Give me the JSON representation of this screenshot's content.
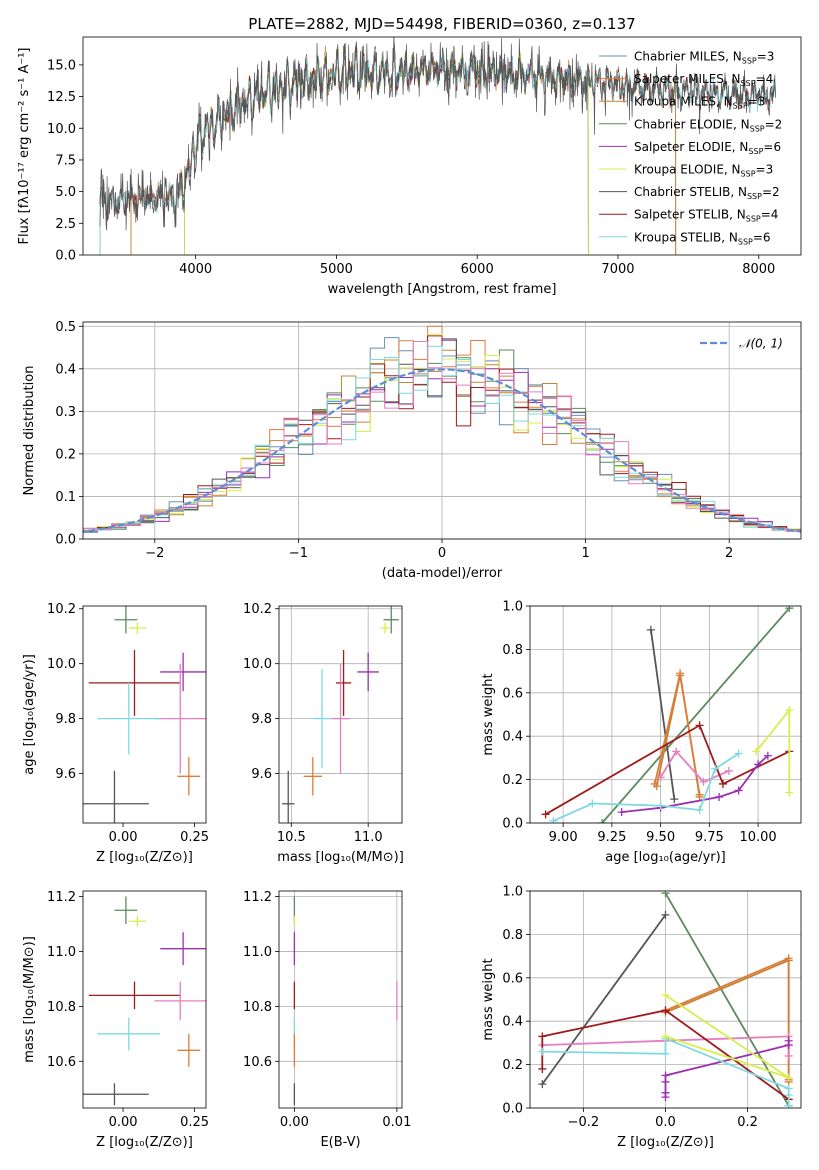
{
  "colors": {
    "Chabrier MILES": "#6a8fb8",
    "Salpeter MILES": "#e07b3c",
    "Kroupa MILES": "#c28437",
    "Chabrier ELODIE": "#5b8a5f",
    "Salpeter ELODIE": "#9b30b0",
    "Kroupa ELODIE": "#d8ee4a",
    "Chabrier STELIB": "#555555",
    "Salpeter STELIB": "#a11a1a",
    "Kroupa STELIB": "#7fd9e0",
    "pink": "#e67fbf",
    "gauss": "#5b8fd6",
    "grid": "#b0b0b0"
  },
  "chart_data": [
    {
      "id": "spectrum",
      "type": "line",
      "title": "PLATE=2882, MJD=54498, FIBERID=0360, z=0.137",
      "xlabel": "wavelength [Angstrom, rest frame]",
      "ylabel": "Flux [fλ10⁻¹⁷ erg cm⁻² s⁻¹ A⁻¹]",
      "xlim": [
        3200,
        8300
      ],
      "ylim": [
        0,
        17.2
      ],
      "xticks": [
        4000,
        5000,
        6000,
        7000,
        8000
      ],
      "yticks": [
        0.0,
        2.5,
        5.0,
        7.5,
        10.0,
        12.5,
        15.0
      ],
      "legend_position": "top-right",
      "legend": [
        {
          "text": "Chabrier MILES, N",
          "sub": "SSP",
          "n": "=3",
          "series": "Chabrier MILES"
        },
        {
          "text": "Salpeter MILES, N",
          "sub": "SSP",
          "n": "=4",
          "series": "Salpeter MILES"
        },
        {
          "text": "Kroupa MILES, N",
          "sub": "SSP",
          "n": "=3",
          "series": "Kroupa MILES"
        },
        {
          "text": "Chabrier ELODIE, N",
          "sub": "SSP",
          "n": "=2",
          "series": "Chabrier ELODIE"
        },
        {
          "text": "Salpeter ELODIE, N",
          "sub": "SSP",
          "n": "=6",
          "series": "Salpeter ELODIE"
        },
        {
          "text": "Kroupa ELODIE, N",
          "sub": "SSP",
          "n": "=3",
          "series": "Kroupa ELODIE"
        },
        {
          "text": "Chabrier STELIB, N",
          "sub": "SSP",
          "n": "=2",
          "series": "Chabrier STELIB"
        },
        {
          "text": "Salpeter STELIB, N",
          "sub": "SSP",
          "n": "=4",
          "series": "Salpeter STELIB"
        },
        {
          "text": "Kroupa STELIB, N",
          "sub": "SSP",
          "n": "=6",
          "series": "Kroupa STELIB"
        }
      ],
      "continuum": [
        [
          3350,
          4.2
        ],
        [
          3500,
          4.4
        ],
        [
          3700,
          4.6
        ],
        [
          3850,
          4.4
        ],
        [
          3950,
          6.5
        ],
        [
          4000,
          8.8
        ],
        [
          4100,
          10.0
        ],
        [
          4300,
          11.8
        ],
        [
          4500,
          12.8
        ],
        [
          4700,
          13.5
        ],
        [
          4900,
          14.0
        ],
        [
          5100,
          14.6
        ],
        [
          5300,
          14.3
        ],
        [
          5500,
          14.5
        ],
        [
          5800,
          14.7
        ],
        [
          6000,
          14.5
        ],
        [
          6300,
          14.3
        ],
        [
          6600,
          13.9
        ],
        [
          6900,
          13.5
        ],
        [
          7200,
          13.2
        ],
        [
          7500,
          12.9
        ],
        [
          7800,
          12.6
        ],
        [
          8100,
          12.6
        ]
      ],
      "data_range": [
        3320,
        8120
      ],
      "model_spans": {
        "Chabrier MILES": [
          3540,
          7410
        ],
        "Salpeter MILES": [
          3540,
          7410
        ],
        "Kroupa MILES": [
          3540,
          7410
        ],
        "Chabrier ELODIE": [
          3920,
          6790
        ],
        "Salpeter ELODIE": [
          3920,
          6790
        ],
        "Kroupa ELODIE": [
          3920,
          6790
        ],
        "Chabrier STELIB": [
          3320,
          8120
        ],
        "Salpeter STELIB": [
          3320,
          8120
        ],
        "Kroupa STELIB": [
          3320,
          8120
        ]
      }
    },
    {
      "id": "residuals",
      "type": "histogram",
      "xlabel": "(data-model)/error",
      "ylabel": "Normed distribution",
      "xlim": [
        -2.5,
        2.5
      ],
      "ylim": [
        0,
        0.51
      ],
      "xticks": [
        -2,
        -1,
        0,
        1,
        2
      ],
      "yticks": [
        0.0,
        0.1,
        0.2,
        0.3,
        0.4,
        0.5
      ],
      "grid": true,
      "legend_position": "top-right",
      "legend": [
        "𝒩(0, 1)"
      ],
      "bin_width": 0.1,
      "reference_curve": "gaussian N(0,1)"
    },
    {
      "id": "age_vs_Z",
      "type": "errorbar",
      "xlabel": "Z [log₁₀(Z/Z⊙)]",
      "ylabel": "age  [log₁₀(age/yr)]",
      "xlim": [
        -0.14,
        0.29
      ],
      "ylim": [
        9.42,
        10.21
      ],
      "xticks": [
        0.0,
        0.25
      ],
      "yticks": [
        9.6,
        9.8,
        10.0,
        10.2
      ],
      "points": [
        {
          "series": "Chabrier ELODIE",
          "x": 0.01,
          "xerr": 0.04,
          "y": 10.16,
          "yerr": 0.05
        },
        {
          "series": "Kroupa ELODIE",
          "x": 0.05,
          "xerr": 0.03,
          "y": 10.13,
          "yerr": 0.02
        },
        {
          "series": "Salpeter ELODIE",
          "x": 0.21,
          "xerr": 0.08,
          "y": 9.97,
          "yerr": 0.07
        },
        {
          "series": "Salpeter STELIB",
          "x": 0.04,
          "xerr": 0.16,
          "y": 9.93,
          "yerr": 0.12
        },
        {
          "series": "pink",
          "x": 0.2,
          "xerr": 0.09,
          "y": 9.8,
          "yerr": 0.2
        },
        {
          "series": "Kroupa STELIB",
          "x": 0.02,
          "xerr": 0.11,
          "y": 9.8,
          "yerr": 0.13
        },
        {
          "series": "Salpeter MILES",
          "x": 0.23,
          "xerr": 0.04,
          "y": 9.59,
          "yerr": 0.07
        },
        {
          "series": "Chabrier STELIB",
          "x": -0.03,
          "xerr": 0.12,
          "y": 9.49,
          "yerr": 0.12
        }
      ]
    },
    {
      "id": "age_vs_mass",
      "type": "errorbar",
      "xlabel": "mass [log₁₀(M/M⊙)]",
      "ylabel": "",
      "xlim": [
        10.42,
        11.22
      ],
      "ylim": [
        9.42,
        10.21
      ],
      "xticks": [
        10.5,
        11.0
      ],
      "yticks": [
        9.6,
        9.8,
        10.0,
        10.2
      ],
      "grid": true,
      "points": [
        {
          "series": "Chabrier ELODIE",
          "x": 11.15,
          "xerr": 0.05,
          "y": 10.16,
          "yerr": 0.05
        },
        {
          "series": "Kroupa ELODIE",
          "x": 11.11,
          "xerr": 0.03,
          "y": 10.13,
          "yerr": 0.02
        },
        {
          "series": "Salpeter ELODIE",
          "x": 11.0,
          "xerr": 0.07,
          "y": 9.97,
          "yerr": 0.07
        },
        {
          "series": "Salpeter STELIB",
          "x": 10.84,
          "xerr": 0.05,
          "y": 9.93,
          "yerr": 0.12
        },
        {
          "series": "pink",
          "x": 10.82,
          "xerr": 0.06,
          "y": 9.8,
          "yerr": 0.2
        },
        {
          "series": "Kroupa STELIB",
          "x": 10.7,
          "xerr": 0.06,
          "y": 9.8,
          "yerr": 0.18
        },
        {
          "series": "Salpeter MILES",
          "x": 10.64,
          "xerr": 0.06,
          "y": 9.59,
          "yerr": 0.07
        },
        {
          "series": "Chabrier STELIB",
          "x": 10.48,
          "xerr": 0.04,
          "y": 9.49,
          "yerr": 0.12
        }
      ]
    },
    {
      "id": "weight_vs_age",
      "type": "line",
      "xlabel": "age  [log₁₀(age/yr)]",
      "ylabel": "mass weight",
      "xlim": [
        8.83,
        10.22
      ],
      "ylim": [
        0,
        1.0
      ],
      "xticks": [
        9.0,
        9.25,
        9.5,
        9.75,
        10.0
      ],
      "yticks": [
        0.0,
        0.2,
        0.4,
        0.6,
        0.8,
        1.0
      ],
      "grid": true,
      "series": [
        {
          "series": "Chabrier ELODIE",
          "x": [
            9.2,
            10.16
          ],
          "y": [
            0.0,
            0.99
          ]
        },
        {
          "series": "Chabrier STELIB",
          "x": [
            9.45,
            9.57
          ],
          "y": [
            0.89,
            0.11
          ]
        },
        {
          "series": "Kroupa MILES",
          "x": [
            9.48,
            9.6,
            9.7
          ],
          "y": [
            0.17,
            0.68,
            0.13
          ]
        },
        {
          "series": "Salpeter MILES",
          "x": [
            9.47,
            9.6,
            9.7
          ],
          "y": [
            0.18,
            0.69,
            0.12
          ]
        },
        {
          "series": "pink",
          "x": [
            9.5,
            9.58,
            9.72,
            9.85
          ],
          "y": [
            0.21,
            0.33,
            0.19,
            0.24
          ]
        },
        {
          "series": "Salpeter STELIB",
          "x": [
            8.91,
            9.7,
            9.82,
            10.16
          ],
          "y": [
            0.04,
            0.45,
            0.18,
            0.33
          ]
        },
        {
          "series": "Salpeter ELODIE",
          "x": [
            9.3,
            9.5,
            9.8,
            9.9,
            10.0,
            10.05
          ],
          "y": [
            0.05,
            0.07,
            0.12,
            0.15,
            0.27,
            0.31
          ]
        },
        {
          "series": "Kroupa STELIB",
          "x": [
            8.95,
            9.15,
            9.5,
            9.7,
            9.78,
            9.9
          ],
          "y": [
            0.01,
            0.09,
            0.08,
            0.06,
            0.25,
            0.32
          ]
        },
        {
          "series": "Kroupa ELODIE",
          "x": [
            9.99,
            10.16,
            10.16
          ],
          "y": [
            0.33,
            0.52,
            0.14
          ]
        }
      ]
    },
    {
      "id": "mass_vs_Z",
      "type": "errorbar",
      "xlabel": "Z [log₁₀(Z/Z⊙)]",
      "ylabel": "mass [log₁₀(M/M⊙)]",
      "xlim": [
        -0.14,
        0.29
      ],
      "ylim": [
        10.43,
        11.22
      ],
      "xticks": [
        0.0,
        0.25
      ],
      "yticks": [
        10.6,
        10.8,
        11.0,
        11.2
      ],
      "points": [
        {
          "series": "Chabrier ELODIE",
          "x": 0.01,
          "xerr": 0.04,
          "y": 11.15,
          "yerr": 0.05
        },
        {
          "series": "Kroupa ELODIE",
          "x": 0.05,
          "xerr": 0.03,
          "y": 11.11,
          "yerr": 0.02
        },
        {
          "series": "Salpeter ELODIE",
          "x": 0.21,
          "xerr": 0.08,
          "y": 11.01,
          "yerr": 0.06
        },
        {
          "series": "Salpeter STELIB",
          "x": 0.04,
          "xerr": 0.16,
          "y": 10.84,
          "yerr": 0.05
        },
        {
          "series": "pink",
          "x": 0.2,
          "xerr": 0.09,
          "y": 10.82,
          "yerr": 0.07
        },
        {
          "series": "Kroupa STELIB",
          "x": 0.02,
          "xerr": 0.11,
          "y": 10.7,
          "yerr": 0.06
        },
        {
          "series": "Salpeter MILES",
          "x": 0.23,
          "xerr": 0.04,
          "y": 10.64,
          "yerr": 0.06
        },
        {
          "series": "Chabrier STELIB",
          "x": -0.03,
          "xerr": 0.12,
          "y": 10.48,
          "yerr": 0.04
        }
      ]
    },
    {
      "id": "mass_vs_ebv",
      "type": "errorbar",
      "xlabel": "E(B-V)",
      "ylabel": "",
      "xlim": [
        -0.0015,
        0.0105
      ],
      "ylim": [
        10.43,
        11.22
      ],
      "xticks": [
        0.0,
        0.01
      ],
      "yticks": [
        10.6,
        10.8,
        11.0,
        11.2
      ],
      "grid": true,
      "points": [
        {
          "series": "Chabrier ELODIE",
          "x": 0.0,
          "xerr": 0,
          "y": 11.15,
          "yerr": 0.05
        },
        {
          "series": "Kroupa ELODIE",
          "x": 0.0,
          "xerr": 0,
          "y": 11.11,
          "yerr": 0.02
        },
        {
          "series": "Salpeter ELODIE",
          "x": 0.0,
          "xerr": 0,
          "y": 11.01,
          "yerr": 0.06
        },
        {
          "series": "Salpeter STELIB",
          "x": 0.0,
          "xerr": 0,
          "y": 10.84,
          "yerr": 0.05
        },
        {
          "series": "pink",
          "x": 0.01,
          "xerr": 0,
          "y": 10.82,
          "yerr": 0.07
        },
        {
          "series": "Kroupa STELIB",
          "x": 0.0,
          "xerr": 0,
          "y": 10.7,
          "yerr": 0.06
        },
        {
          "series": "Salpeter MILES",
          "x": 0.0,
          "xerr": 0,
          "y": 10.64,
          "yerr": 0.06
        },
        {
          "series": "Chabrier STELIB",
          "x": 0.0,
          "xerr": 0,
          "y": 10.48,
          "yerr": 0.04
        }
      ]
    },
    {
      "id": "weight_vs_Z",
      "type": "line",
      "xlabel": "Z [log₁₀(Z/Z⊙)]",
      "ylabel": "mass weight",
      "xlim": [
        -0.33,
        0.33
      ],
      "ylim": [
        0,
        1.0
      ],
      "xticks": [
        -0.2,
        0.0,
        0.2
      ],
      "yticks": [
        0.0,
        0.2,
        0.4,
        0.6,
        0.8,
        1.0
      ],
      "grid": true,
      "series": [
        {
          "series": "Chabrier ELODIE",
          "x": [
            0.0,
            0.3
          ],
          "y": [
            0.99,
            0.01
          ]
        },
        {
          "series": "Chabrier STELIB",
          "x": [
            -0.3,
            0.0
          ],
          "y": [
            0.11,
            0.89
          ]
        },
        {
          "series": "Kroupa MILES",
          "x": [
            0.0,
            0.3,
            0.3
          ],
          "y": [
            0.44,
            0.68,
            0.13
          ]
        },
        {
          "series": "Salpeter MILES",
          "x": [
            0.0,
            0.3,
            0.3
          ],
          "y": [
            0.45,
            0.69,
            0.12
          ]
        },
        {
          "series": "pink",
          "x": [
            -0.3,
            0.3,
            0.3
          ],
          "y": [
            0.29,
            0.33,
            0.24
          ]
        },
        {
          "series": "Salpeter STELIB",
          "x": [
            -0.3,
            -0.3,
            0.0,
            0.3
          ],
          "y": [
            0.18,
            0.33,
            0.45,
            0.04
          ]
        },
        {
          "series": "Salpeter ELODIE",
          "x": [
            0.0,
            0.0,
            0.0,
            0.0,
            0.3,
            0.3
          ],
          "y": [
            0.05,
            0.07,
            0.12,
            0.15,
            0.29,
            0.31
          ]
        },
        {
          "series": "Kroupa STELIB",
          "x": [
            -0.3,
            0.0,
            0.0,
            0.3,
            0.3,
            0.3
          ],
          "y": [
            0.26,
            0.25,
            0.32,
            0.09,
            0.06,
            0.01
          ]
        },
        {
          "series": "Kroupa ELODIE",
          "x": [
            0.0,
            0.3,
            0.0
          ],
          "y": [
            0.52,
            0.14,
            0.33
          ]
        }
      ]
    }
  ]
}
